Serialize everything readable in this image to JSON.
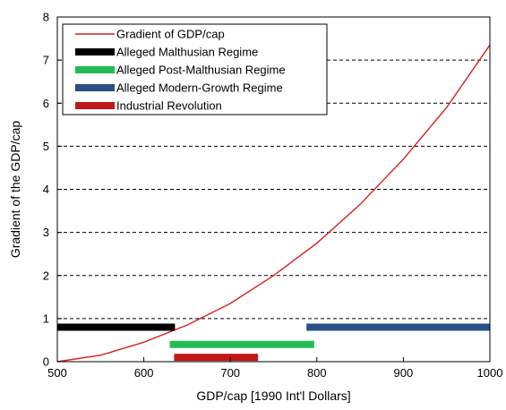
{
  "chart_data": {
    "type": "line",
    "title": "",
    "xlabel": "GDP/cap [1990 Int'l Dollars]",
    "ylabel": "Gradient of the GDP/cap",
    "xlim": [
      500,
      1000
    ],
    "ylim": [
      0,
      8
    ],
    "x_ticks": [
      500,
      600,
      700,
      800,
      900,
      1000
    ],
    "y_ticks": [
      0,
      1,
      2,
      3,
      4,
      5,
      6,
      7,
      8
    ],
    "grid": "dashed horizontal at y=1..7",
    "legend_position": "top-left",
    "series": [
      {
        "name": "Gradient of GDP/cap",
        "type": "line",
        "color": "#d62020",
        "x": [
          500,
          550,
          600,
          650,
          700,
          750,
          800,
          850,
          900,
          950,
          1000
        ],
        "y": [
          0.0,
          0.15,
          0.45,
          0.85,
          1.35,
          2.0,
          2.75,
          3.65,
          4.7,
          5.9,
          7.35
        ]
      },
      {
        "name": "Alleged Malthusian Regime",
        "type": "range-bar",
        "color": "#000000",
        "x_start": 500,
        "x_end": 636,
        "y": 0.8
      },
      {
        "name": "Alleged Post-Malthusian Regime",
        "type": "range-bar",
        "color": "#22bb55",
        "x_start": 630,
        "x_end": 797,
        "y": 0.4
      },
      {
        "name": "Alleged Modern-Growth Regime",
        "type": "range-bar",
        "color": "#2a4f86",
        "x_start": 788,
        "x_end": 1000,
        "y": 0.8
      },
      {
        "name": "Industrial Revolution",
        "type": "range-bar",
        "color": "#c01818",
        "x_start": 635,
        "x_end": 732,
        "y": 0.1
      }
    ]
  }
}
